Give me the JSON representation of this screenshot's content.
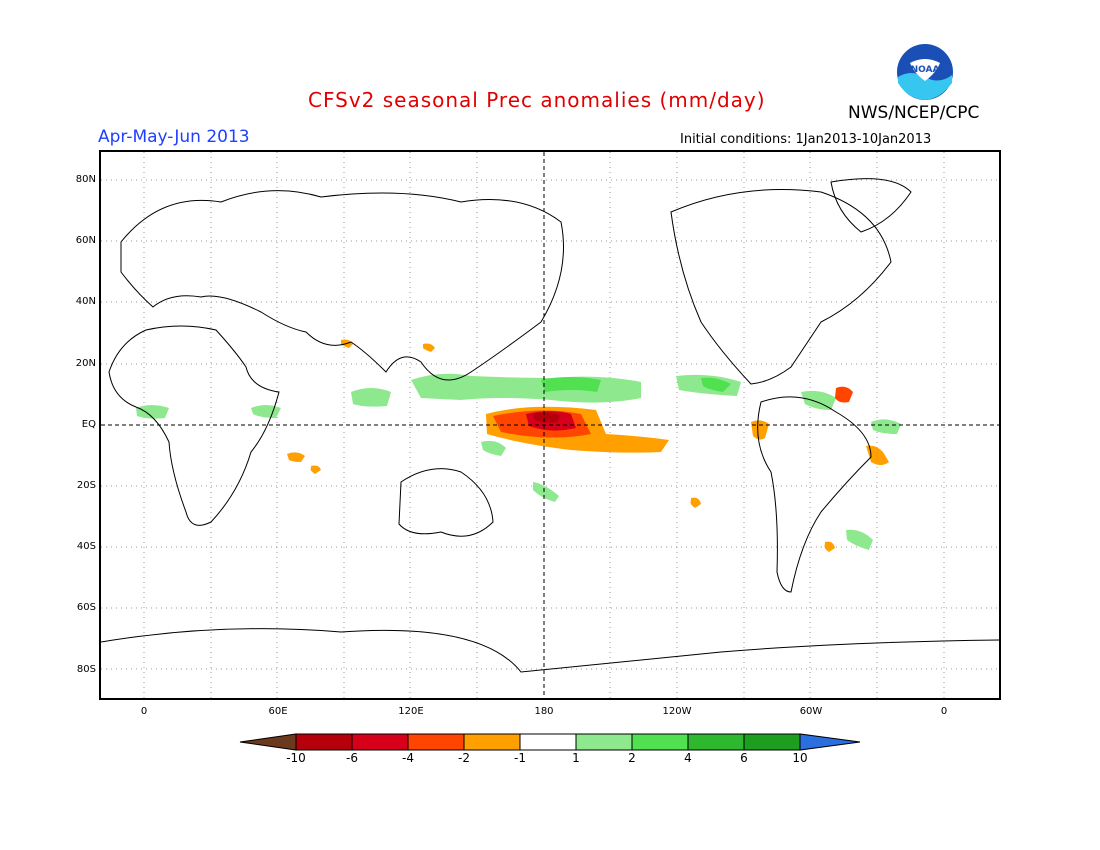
{
  "header": {
    "title": "CFSv2 seasonal Prec anomalies (mm/day)",
    "agency": "NWS/NCEP/CPC",
    "season": "Apr-May-Jun 2013",
    "initial_conditions": "Initial conditions: 1Jan2013-10Jan2013",
    "logo_text": "NOAA"
  },
  "map": {
    "projection": "equirectangular",
    "lat_labels": [
      "80N",
      "60N",
      "40N",
      "20N",
      "EQ",
      "20S",
      "40S",
      "60S",
      "80S"
    ],
    "lon_labels": [
      "0",
      "60E",
      "120E",
      "180",
      "120W",
      "60W",
      "0"
    ],
    "grid": "dotted",
    "reference_lines": [
      "EQ",
      "180"
    ]
  },
  "colorbar": {
    "labels": [
      "-10",
      "-6",
      "-4",
      "-2",
      "-1",
      "1",
      "2",
      "4",
      "6",
      "10"
    ],
    "colors": [
      "#6b3a1e",
      "#b5000b",
      "#d7001a",
      "#ff4500",
      "#ffa000",
      "#ffffff",
      "#8ee98e",
      "#50e050",
      "#2eb82e",
      "#1e9e1e",
      "#2a6ee0"
    ]
  },
  "anomalies": [
    {
      "name": "central-pacific-dry",
      "sign": "negative",
      "peak": "-6 to -10"
    },
    {
      "name": "itcz-wet-band",
      "sign": "positive",
      "peak": "1 to 2"
    },
    {
      "name": "ne-brazil-dry",
      "sign": "negative",
      "peak": "-1 to -4"
    }
  ]
}
